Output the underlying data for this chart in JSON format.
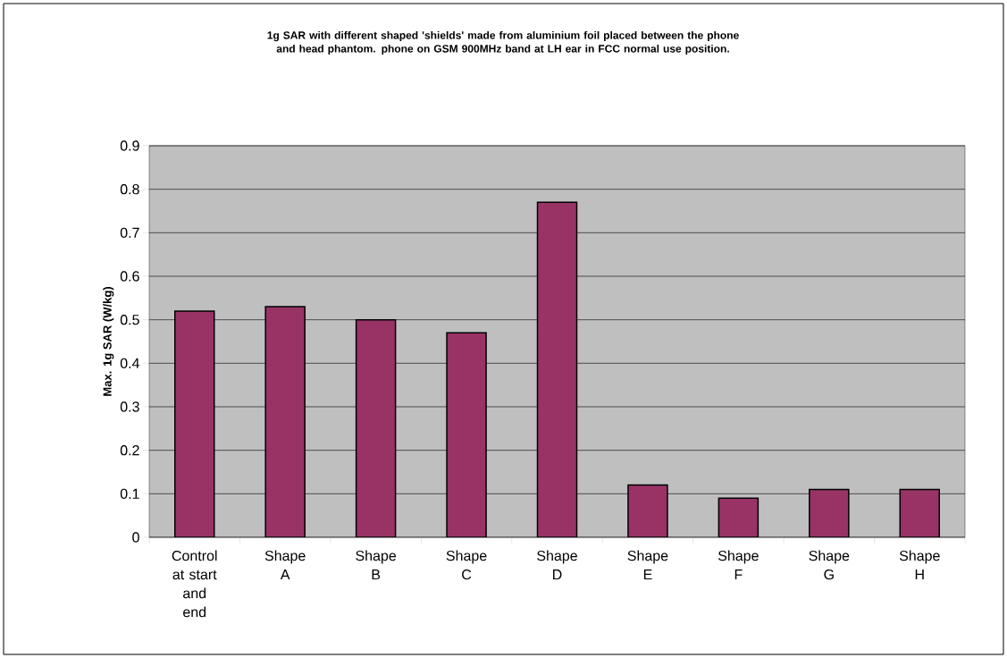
{
  "chart_data": {
    "type": "bar",
    "title": "1g SAR with different shaped 'shields' made from aluminium foil placed between the phone and head phantom. phone on GSM 900MHz band at LH ear in FCC normal use position.",
    "ylabel": "Max. 1g SAR (W/kg)",
    "categories": [
      "Control at start and end",
      "Shape A",
      "Shape B",
      "Shape C",
      "Shape D",
      "Shape E",
      "Shape F",
      "Shape G",
      "Shape H"
    ],
    "values": [
      0.52,
      0.53,
      0.5,
      0.47,
      0.77,
      0.12,
      0.09,
      0.11,
      0.11
    ],
    "color": "#993366",
    "ylim": [
      0,
      0.9
    ],
    "yticks": [
      0,
      0.1,
      0.2,
      0.3,
      0.4,
      0.5,
      0.6,
      0.7,
      0.8,
      0.9
    ],
    "grid": "y"
  }
}
